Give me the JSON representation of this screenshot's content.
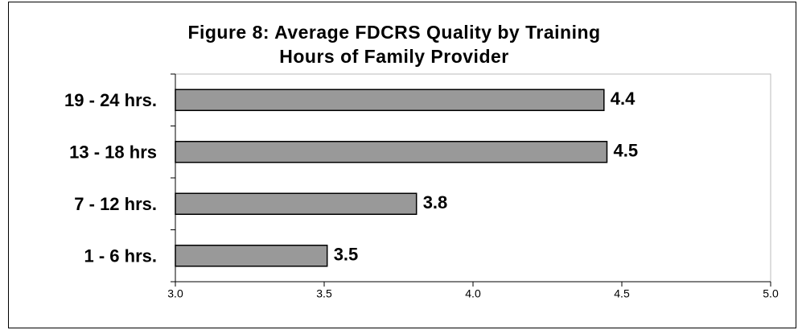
{
  "chart_data": {
    "type": "barh",
    "title": [
      "Figure 8:  Average FDCRS Quality by Training",
      "Hours of Family Provider"
    ],
    "categories": [
      "19 - 24 hrs.",
      "13 - 18 hrs",
      "7 - 12 hrs.",
      "1 - 6 hrs."
    ],
    "values": [
      4.44,
      4.45,
      3.81,
      3.51
    ],
    "value_labels": [
      "4.4",
      "4.5",
      "3.8",
      "3.5"
    ],
    "color": "#999999",
    "xlim": [
      3.0,
      5.0
    ],
    "xticks": [
      {
        "value": 3.0,
        "label": "3.0"
      },
      {
        "value": 3.5,
        "label": "3.5"
      },
      {
        "value": 4.0,
        "label": "4.0"
      },
      {
        "value": 4.5,
        "label": "4.5"
      },
      {
        "value": 5.0,
        "label": "5.0"
      }
    ]
  }
}
